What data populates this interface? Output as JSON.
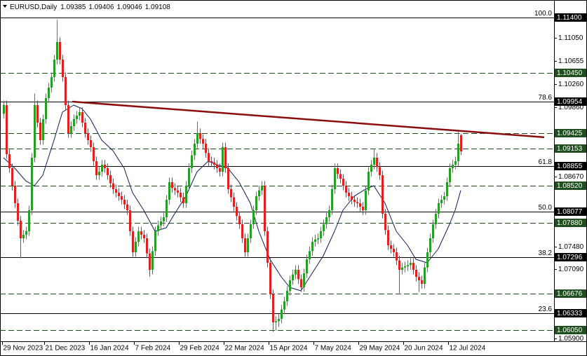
{
  "chart_data": {
    "type": "candlestick",
    "symbol_label": "EURUSD,Daily",
    "up_color": "#22a122",
    "down_color": "#e3211c",
    "categories": [
      "29 Nov 2023",
      null,
      null,
      null,
      null,
      null,
      null,
      null,
      null,
      null,
      null,
      null,
      null,
      null,
      null,
      "21 Dec 2023",
      null,
      null,
      null,
      null,
      null,
      null,
      null,
      null,
      null,
      null,
      null,
      null,
      null,
      null,
      null,
      "16 Jan 2024",
      null,
      null,
      null,
      null,
      null,
      null,
      null,
      null,
      null,
      null,
      null,
      null,
      null,
      null,
      null,
      "7 Feb 2024",
      null,
      null,
      null,
      null,
      null,
      null,
      null,
      null,
      null,
      null,
      null,
      null,
      null,
      null,
      null,
      "29 Feb 2024",
      null,
      null,
      null,
      null,
      null,
      null,
      null,
      null,
      null,
      null,
      null,
      null,
      null,
      null,
      null,
      "22 Mar 2024",
      null,
      null,
      null,
      null,
      null,
      null,
      null,
      null,
      null,
      null,
      null,
      null,
      null,
      null,
      null,
      "15 Apr 2024",
      null,
      null,
      null,
      null,
      null,
      null,
      null,
      null,
      null,
      null,
      null,
      null,
      null,
      null,
      null,
      "7 May 2024",
      null,
      null,
      null,
      null,
      null,
      null,
      null,
      null,
      null,
      null,
      null,
      null,
      null,
      null,
      null,
      "29 May 2024",
      null,
      null,
      null,
      null,
      null,
      null,
      null,
      null,
      null,
      null,
      null,
      null,
      null,
      null,
      null,
      "20 Jun 2024",
      null,
      null,
      null,
      null,
      null,
      null,
      null,
      null,
      null,
      null,
      null,
      null,
      null,
      null,
      null,
      "12 Jul 2024",
      null,
      null,
      null,
      null
    ],
    "open": [
      1.0975,
      1.099,
      1.0906,
      1.0882,
      1.0852,
      1.0822,
      1.0792,
      1.0762,
      1.0768,
      1.0774,
      1.081,
      1.09,
      1.099,
      1.096,
      1.093,
      1.0966,
      1.1002,
      1.102,
      1.1038,
      1.1068,
      1.1098,
      1.1068,
      1.1038,
      1.099,
      1.0942,
      1.0954,
      1.0966,
      1.0972,
      1.0978,
      1.096,
      1.0942,
      1.093,
      1.0918,
      1.0894,
      1.087,
      1.0876,
      1.0888,
      1.0882,
      1.087,
      1.0856,
      1.0846,
      1.084,
      1.0834,
      1.0828,
      1.082,
      1.081,
      1.0774,
      1.0738,
      1.0756,
      1.0774,
      1.0768,
      1.0762,
      1.0736,
      1.0708,
      1.074,
      1.0774,
      1.0784,
      1.0791,
      1.0798,
      1.0828,
      1.0858,
      1.0848,
      1.0844,
      1.084,
      1.0832,
      1.0822,
      1.0852,
      1.0882,
      1.0904,
      1.0924,
      1.0942,
      1.0932,
      1.0924,
      1.0908,
      1.0894,
      1.0892,
      1.0888,
      1.0882,
      1.0876,
      1.0918,
      1.0882,
      1.0846,
      1.0832,
      1.0816,
      1.08,
      1.0786,
      1.0762,
      1.0738,
      1.0762,
      1.0786,
      1.081,
      1.0834,
      1.0844,
      1.0852,
      1.0774,
      1.072,
      1.0666,
      1.0618,
      1.062,
      1.0624,
      1.064,
      1.0654,
      1.0672,
      1.069,
      1.07,
      1.0708,
      1.0692,
      1.0678,
      1.0702,
      1.0726,
      1.074,
      1.0756,
      1.076,
      1.0762,
      1.0774,
      1.0786,
      1.0798,
      1.081,
      1.0846,
      1.0882,
      1.0872,
      1.0864,
      1.0852,
      1.084,
      1.0834,
      1.0828,
      1.0824,
      1.0822,
      1.0816,
      1.081,
      1.0844,
      1.0876,
      1.0888,
      1.09,
      1.0884,
      1.087,
      1.0804,
      1.0776,
      1.075,
      1.0744,
      1.0738,
      1.0724,
      1.0708,
      1.0712,
      1.0714,
      1.0716,
      1.072,
      1.0708,
      1.0696,
      1.069,
      1.0684,
      1.0712,
      1.0738,
      1.0762,
      1.0786,
      1.0804,
      1.0822,
      1.0828,
      1.0834,
      1.0858,
      1.0882,
      1.0888,
      1.0894,
      1.09385
    ],
    "high": [
      1.0998,
      1.0998,
      1.0914,
      1.089,
      1.086,
      1.083,
      1.08,
      1.0776,
      1.0782,
      1.0818,
      1.0908,
      1.101,
      1.0998,
      1.0968,
      1.0974,
      1.101,
      1.1028,
      1.1046,
      1.1076,
      1.1136,
      1.1106,
      1.1076,
      1.1046,
      1.0998,
      1.0962,
      1.0974,
      1.098,
      1.0986,
      1.0986,
      1.0968,
      1.095,
      1.0938,
      1.0926,
      1.0902,
      1.0884,
      1.0896,
      1.0896,
      1.089,
      1.0878,
      1.0864,
      1.0854,
      1.0848,
      1.0842,
      1.0836,
      1.0828,
      1.0818,
      1.0782,
      1.0764,
      1.0782,
      1.0782,
      1.0776,
      1.077,
      1.0744,
      1.0748,
      1.0782,
      1.0792,
      1.0799,
      1.0806,
      1.0836,
      1.0866,
      1.0866,
      1.0856,
      1.0852,
      1.0848,
      1.084,
      1.086,
      1.089,
      1.0912,
      1.0932,
      1.0962,
      1.095,
      1.094,
      1.0932,
      1.0916,
      1.0902,
      1.09,
      1.0896,
      1.089,
      1.0926,
      1.0926,
      1.089,
      1.0854,
      1.084,
      1.0824,
      1.0808,
      1.0794,
      1.077,
      1.077,
      1.0794,
      1.0818,
      1.0842,
      1.0852,
      1.086,
      1.086,
      1.0782,
      1.0728,
      1.0674,
      1.0628,
      1.0632,
      1.0648,
      1.0662,
      1.068,
      1.0698,
      1.0708,
      1.0716,
      1.0716,
      1.07,
      1.071,
      1.0734,
      1.0748,
      1.0764,
      1.0768,
      1.077,
      1.0782,
      1.0794,
      1.0806,
      1.0818,
      1.0854,
      1.089,
      1.089,
      1.088,
      1.0872,
      1.086,
      1.0848,
      1.0842,
      1.0836,
      1.0832,
      1.083,
      1.0824,
      1.0852,
      1.0884,
      1.0896,
      1.0915,
      1.0908,
      1.0892,
      1.0878,
      1.0812,
      1.0784,
      1.0758,
      1.0752,
      1.0746,
      1.0732,
      1.072,
      1.0722,
      1.0724,
      1.0728,
      1.0728,
      1.0716,
      1.0704,
      1.0698,
      1.072,
      1.0746,
      1.077,
      1.0794,
      1.0812,
      1.083,
      1.0836,
      1.0842,
      1.0866,
      1.089,
      1.0896,
      1.0902,
      1.0945,
      1.09406
    ],
    "low": [
      1.0967,
      1.0898,
      1.0874,
      1.0844,
      1.0814,
      1.0784,
      1.0728,
      1.0754,
      1.076,
      1.0766,
      1.0802,
      1.0892,
      1.0952,
      1.0922,
      1.0922,
      1.0958,
      1.0994,
      1.1012,
      1.103,
      1.106,
      1.106,
      1.103,
      1.0982,
      1.0934,
      1.0934,
      1.0946,
      1.0958,
      1.0964,
      1.0952,
      1.0934,
      1.0922,
      1.091,
      1.0886,
      1.0862,
      1.0862,
      1.0868,
      1.0874,
      1.0862,
      1.0848,
      1.0838,
      1.0832,
      1.0826,
      1.082,
      1.0812,
      1.0802,
      1.0766,
      1.073,
      1.073,
      1.0748,
      1.076,
      1.0754,
      1.0728,
      1.0696,
      1.07,
      1.0732,
      1.0766,
      1.0776,
      1.0783,
      1.079,
      1.082,
      1.084,
      1.0836,
      1.0832,
      1.0824,
      1.0814,
      1.0814,
      1.0844,
      1.0874,
      1.0896,
      1.0916,
      1.0924,
      1.0916,
      1.09,
      1.0886,
      1.0884,
      1.088,
      1.0874,
      1.0868,
      1.0868,
      1.0874,
      1.0838,
      1.0824,
      1.0808,
      1.0792,
      1.0778,
      1.0754,
      1.073,
      1.073,
      1.0754,
      1.0778,
      1.0802,
      1.0826,
      1.0836,
      1.0766,
      1.0712,
      1.0658,
      1.0602,
      1.0604,
      1.061,
      1.0616,
      1.0632,
      1.0646,
      1.0664,
      1.0682,
      1.0692,
      1.0684,
      1.067,
      1.067,
      1.0694,
      1.0718,
      1.0732,
      1.0748,
      1.0752,
      1.0754,
      1.0766,
      1.0778,
      1.079,
      1.0802,
      1.0838,
      1.0864,
      1.0856,
      1.0844,
      1.0832,
      1.0826,
      1.082,
      1.0816,
      1.0814,
      1.0808,
      1.0802,
      1.0802,
      1.0836,
      1.0868,
      1.088,
      1.0876,
      1.0862,
      1.0796,
      1.0768,
      1.0742,
      1.0736,
      1.073,
      1.0716,
      1.0668,
      1.07,
      1.0704,
      1.0706,
      1.0708,
      1.07,
      1.0688,
      1.067,
      1.0676,
      1.0676,
      1.0704,
      1.073,
      1.0754,
      1.0778,
      1.0796,
      1.0814,
      1.082,
      1.0826,
      1.085,
      1.0874,
      1.088,
      1.0886,
      1.09046
    ],
    "close": [
      1.099,
      1.0906,
      1.0882,
      1.0852,
      1.0822,
      1.0792,
      1.0762,
      1.0768,
      1.0774,
      1.081,
      1.09,
      1.099,
      1.096,
      1.093,
      1.0966,
      1.1002,
      1.102,
      1.1038,
      1.1068,
      1.1098,
      1.1068,
      1.1038,
      1.099,
      1.0942,
      1.0954,
      1.0966,
      1.0972,
      1.0978,
      1.096,
      1.0942,
      1.093,
      1.0918,
      1.0894,
      1.087,
      1.0876,
      1.0888,
      1.0882,
      1.087,
      1.0856,
      1.0846,
      1.084,
      1.0834,
      1.0828,
      1.082,
      1.081,
      1.0774,
      1.0738,
      1.0756,
      1.0774,
      1.0768,
      1.0762,
      1.0736,
      1.0708,
      1.074,
      1.0774,
      1.0784,
      1.0791,
      1.0798,
      1.0828,
      1.0858,
      1.0848,
      1.0844,
      1.084,
      1.0832,
      1.0822,
      1.0852,
      1.0882,
      1.0904,
      1.0924,
      1.0942,
      1.0932,
      1.0924,
      1.0908,
      1.0894,
      1.0892,
      1.0888,
      1.0882,
      1.0876,
      1.0918,
      1.0882,
      1.0846,
      1.0832,
      1.0816,
      1.08,
      1.0786,
      1.0762,
      1.0738,
      1.0762,
      1.0786,
      1.081,
      1.0834,
      1.0844,
      1.0852,
      1.0774,
      1.072,
      1.0666,
      1.0618,
      1.062,
      1.0624,
      1.064,
      1.0654,
      1.0672,
      1.069,
      1.07,
      1.0708,
      1.0692,
      1.0678,
      1.0702,
      1.0726,
      1.074,
      1.0756,
      1.076,
      1.0762,
      1.0774,
      1.0786,
      1.0798,
      1.081,
      1.0846,
      1.0882,
      1.0872,
      1.0864,
      1.0852,
      1.084,
      1.0834,
      1.0828,
      1.0824,
      1.0822,
      1.0816,
      1.081,
      1.0844,
      1.0876,
      1.0888,
      1.09,
      1.0884,
      1.087,
      1.0804,
      1.0776,
      1.075,
      1.0744,
      1.0738,
      1.0724,
      1.0708,
      1.0712,
      1.0714,
      1.0716,
      1.072,
      1.0708,
      1.0696,
      1.069,
      1.0684,
      1.0712,
      1.0738,
      1.0762,
      1.0786,
      1.0804,
      1.0822,
      1.0828,
      1.0834,
      1.0858,
      1.0882,
      1.0888,
      1.0894,
      1.0924,
      1.09108
    ],
    "xlim": [
      -1.25,
      196.25
    ],
    "ylim": [
      1.05856,
      1.11496
    ],
    "yticks": [
      {
        "value": 1.1105,
        "label": "1.11050"
      },
      {
        "value": 1.10655,
        "label": "1.10655"
      },
      {
        "value": 1.1026,
        "label": "1.10260"
      },
      {
        "value": 1.0986,
        "label": "1.09860"
      },
      {
        "value": 1.0867,
        "label": "1.08670"
      },
      {
        "value": 1.0748,
        "label": "1.07480"
      },
      {
        "value": 1.0709,
        "label": "1.07090"
      },
      {
        "value": 1.059,
        "label": "1.05900"
      }
    ],
    "levels": [
      {
        "value": 1.114,
        "label": "1.11400",
        "style": "solid",
        "fib": "100.0"
      },
      {
        "value": 1.1045,
        "label": "1.10450",
        "style": "dashed"
      },
      {
        "value": 1.09954,
        "label": "1.09954",
        "style": "solid",
        "fib": "78.6"
      },
      {
        "value": 1.09425,
        "label": "1.09425",
        "style": "dashed"
      },
      {
        "value": 1.09153,
        "label": "1.09153",
        "style": "dashed"
      },
      {
        "value": 1.08855,
        "label": "1.08855",
        "style": "solid",
        "fib": "61.8"
      },
      {
        "value": 1.0852,
        "label": "1.08520",
        "style": "dashed"
      },
      {
        "value": 1.08077,
        "label": "1.08077",
        "style": "solid",
        "fib": "50.0"
      },
      {
        "value": 1.0788,
        "label": "1.07880",
        "style": "dashed"
      },
      {
        "value": 1.07296,
        "label": "1.07296",
        "style": "solid",
        "fib": "38.2"
      },
      {
        "value": 1.06676,
        "label": "1.06676",
        "style": "dashed"
      },
      {
        "value": 1.06333,
        "label": "1.06333",
        "style": "solid",
        "fib": "23.6"
      },
      {
        "value": 1.0605,
        "label": "1.06050",
        "style": "dashed"
      }
    ],
    "moving_average": {
      "color": "#0b1a5c",
      "x": [
        0,
        4,
        8,
        11,
        14,
        18,
        21,
        25,
        28,
        31,
        35,
        39,
        43,
        46,
        50,
        54,
        58,
        61,
        65,
        69,
        73,
        76,
        80,
        84,
        88,
        91,
        95,
        99,
        102,
        106,
        110,
        114,
        118,
        121,
        125,
        129,
        132,
        136,
        140,
        144,
        147,
        151,
        155,
        159,
        161,
        163
      ],
      "values": [
        1.09,
        1.0882,
        1.086,
        1.0852,
        1.087,
        1.093,
        1.0978,
        1.099,
        1.0984,
        1.0966,
        1.093,
        1.0912,
        1.0882,
        1.084,
        1.081,
        1.0774,
        1.078,
        1.0804,
        1.0834,
        1.0876,
        1.0894,
        1.0888,
        1.0882,
        1.0858,
        1.0822,
        1.0774,
        1.0726,
        1.0696,
        1.0678,
        1.0672,
        1.0702,
        1.0732,
        1.0774,
        1.081,
        1.0834,
        1.0846,
        1.0852,
        1.0822,
        1.0774,
        1.075,
        1.0726,
        1.072,
        1.0744,
        1.0786,
        1.081,
        1.0844
      ]
    },
    "trendline": {
      "color": "#8b0d0d",
      "x": [
        24.5,
        192.75
      ],
      "values": [
        1.0996,
        1.0935
      ]
    }
  }
}
